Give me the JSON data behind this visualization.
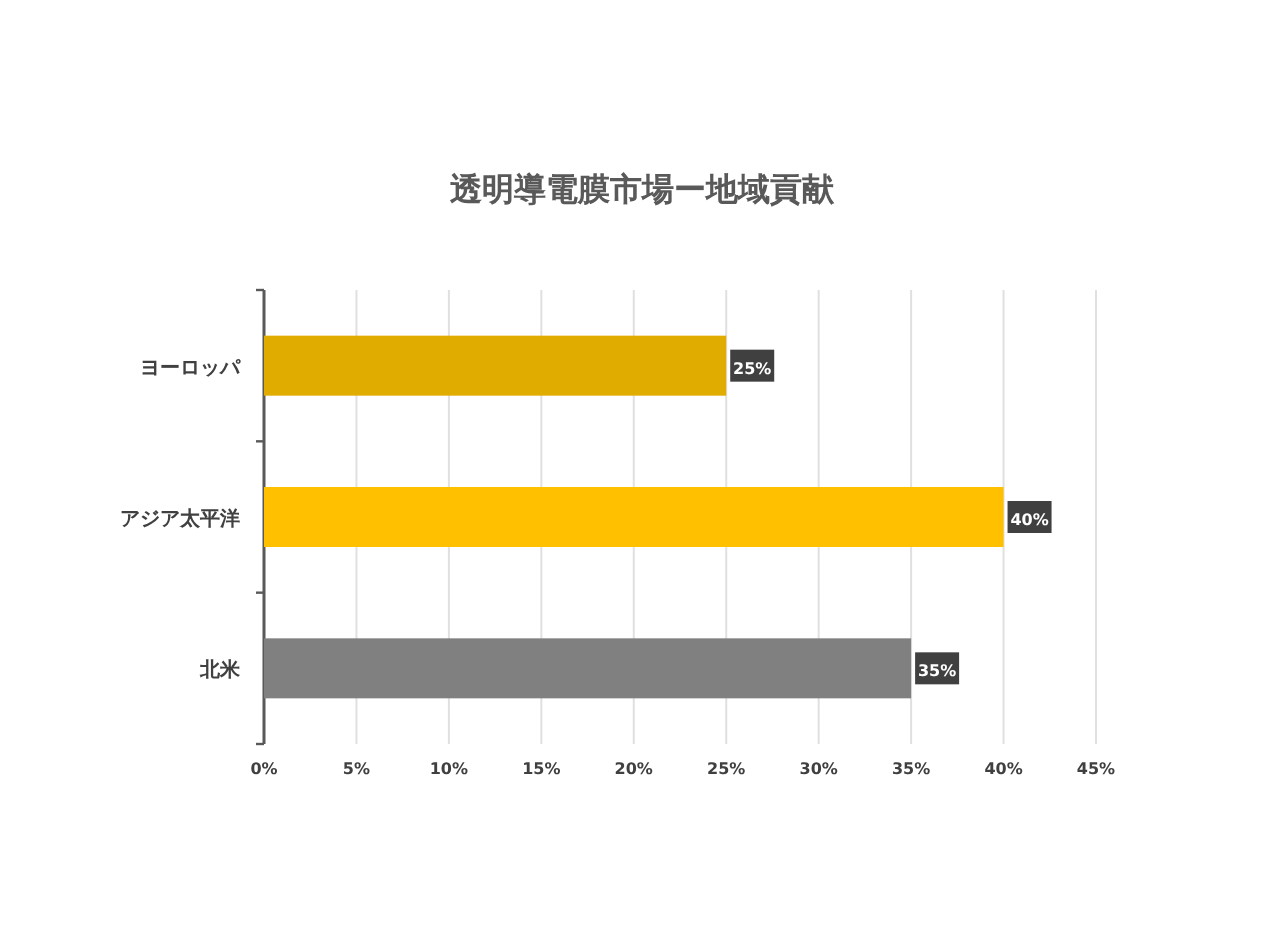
{
  "chart_data": {
    "type": "bar",
    "orientation": "horizontal",
    "title": "透明導電膜市場ー地域貢献",
    "categories": [
      "ヨーロッパ",
      "アジア太平洋",
      "北米"
    ],
    "values": [
      25,
      40,
      35
    ],
    "colors": [
      "#e0ac00",
      "#ffc000",
      "#808080"
    ],
    "xlim": [
      0,
      45
    ],
    "xticks": [
      {
        "value": 0,
        "label": "0%"
      },
      {
        "value": 5,
        "label": "5%"
      },
      {
        "value": 10,
        "label": "10%"
      },
      {
        "value": 15,
        "label": "15%"
      },
      {
        "value": 20,
        "label": "20%"
      },
      {
        "value": 25,
        "label": "25%"
      },
      {
        "value": 30,
        "label": "30%"
      },
      {
        "value": 35,
        "label": "35%"
      },
      {
        "value": 40,
        "label": "40%"
      },
      {
        "value": 45,
        "label": "45%"
      }
    ],
    "value_labels": [
      "25%",
      "40%",
      "35%"
    ],
    "grid": "x"
  }
}
